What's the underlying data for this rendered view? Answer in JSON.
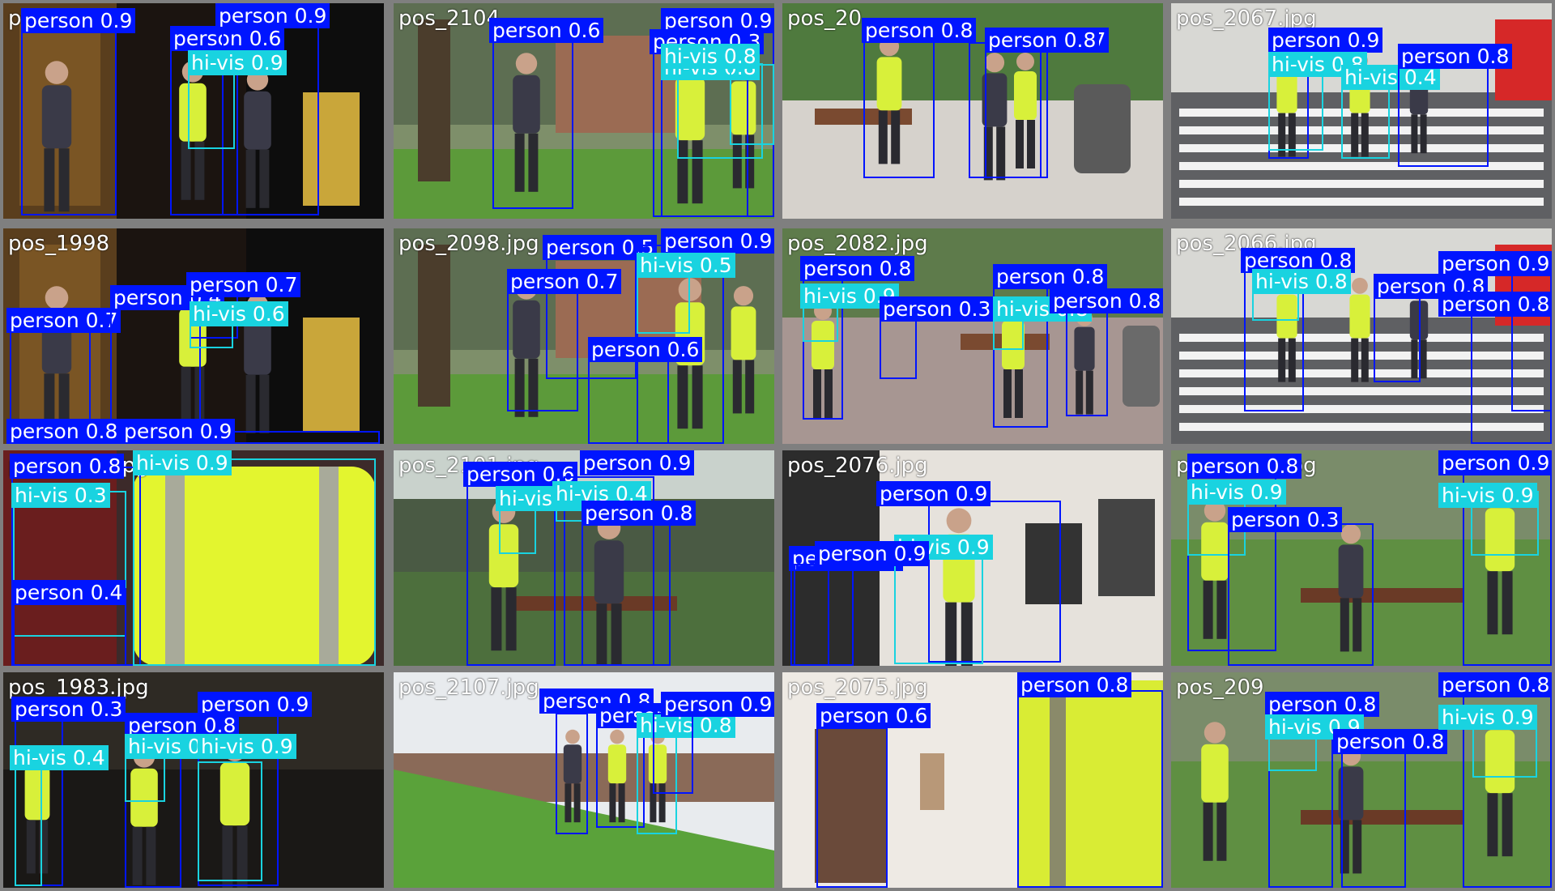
{
  "tiles": [
    {
      "name": "po",
      "scene": "doorway",
      "boxes": [
        {
          "cls": "person",
          "conf": "0.9"
        },
        {
          "cls": "person",
          "conf": "0.6"
        },
        {
          "cls": "person",
          "conf": "0.9"
        },
        {
          "cls": "hi-vis",
          "conf": "0.9"
        }
      ]
    },
    {
      "name": "pos_2104",
      "scene": "park",
      "boxes": [
        {
          "cls": "person",
          "conf": "0.6"
        },
        {
          "cls": "person",
          "conf": "0.9"
        },
        {
          "cls": "person",
          "conf": "0.3"
        },
        {
          "cls": "hi-vis",
          "conf": "0.8"
        },
        {
          "cls": "hi-vis",
          "conf": "0.8"
        }
      ]
    },
    {
      "name": "pos_20",
      "scene": "park-bench",
      "boxes": [
        {
          "cls": "person",
          "conf": "0.8"
        },
        {
          "cls": "person",
          "conf": "0.7"
        },
        {
          "cls": "person",
          "conf": "0.8"
        }
      ]
    },
    {
      "name": "pos_2067.jpg",
      "scene": "crosswalk",
      "boxes": [
        {
          "cls": "person",
          "conf": "0.9"
        },
        {
          "cls": "hi-vis",
          "conf": "0.8"
        },
        {
          "cls": "hi-vis",
          "conf": "0.4"
        },
        {
          "cls": "person",
          "conf": "0.8"
        }
      ]
    },
    {
      "name": "pos_1998",
      "scene": "doorway",
      "boxes": [
        {
          "cls": "person",
          "conf": "0.7"
        },
        {
          "cls": "person",
          "conf": "0.4"
        },
        {
          "cls": "person",
          "conf": "0.7"
        },
        {
          "cls": "hi-vis",
          "conf": "0.6"
        },
        {
          "cls": "person",
          "conf": "0.8"
        },
        {
          "cls": "person",
          "conf": "0.9"
        }
      ]
    },
    {
      "name": "pos_2098.jpg",
      "scene": "park",
      "boxes": [
        {
          "cls": "person",
          "conf": "0.5"
        },
        {
          "cls": "person",
          "conf": "0.9"
        },
        {
          "cls": "person",
          "conf": "0.7"
        },
        {
          "cls": "hi-vis",
          "conf": "0.5"
        },
        {
          "cls": "person",
          "conf": "0.6"
        }
      ]
    },
    {
      "name": "pos_2082.jpg",
      "scene": "plaza",
      "boxes": [
        {
          "cls": "person",
          "conf": "0.8"
        },
        {
          "cls": "hi-vis",
          "conf": "0.9"
        },
        {
          "cls": "person",
          "conf": "0.8"
        },
        {
          "cls": "person",
          "conf": "0.3"
        },
        {
          "cls": "hi-vis",
          "conf": "0.8"
        },
        {
          "cls": "person",
          "conf": "0.8"
        }
      ]
    },
    {
      "name": "pos_2066.jpg",
      "scene": "crosswalk",
      "boxes": [
        {
          "cls": "person",
          "conf": "0.8"
        },
        {
          "cls": "hi-vis",
          "conf": "0.8"
        },
        {
          "cls": "person",
          "conf": "0.9"
        },
        {
          "cls": "person",
          "conf": "0.8"
        },
        {
          "cls": "person",
          "conf": "0.8"
        }
      ]
    },
    {
      "name": "pos_1994.jpg",
      "scene": "closeup-yellow",
      "boxes": [
        {
          "cls": "person",
          "conf": "0.8"
        },
        {
          "cls": "hi-vis",
          "conf": "0.3"
        },
        {
          "cls": "person",
          "conf": "0.4"
        },
        {
          "cls": "hi-vis",
          "conf": "0.9"
        }
      ]
    },
    {
      "name": "pos_2101.jpg",
      "scene": "park-fence",
      "boxes": [
        {
          "cls": "person",
          "conf": "0.6"
        },
        {
          "cls": "person",
          "conf": "0.9"
        },
        {
          "cls": "hi-vis",
          "conf": "0.9"
        },
        {
          "cls": "hi-vis",
          "conf": "0.4"
        },
        {
          "cls": "person",
          "conf": "0.8"
        }
      ]
    },
    {
      "name": "pos_2076.jpg",
      "scene": "gallery",
      "boxes": [
        {
          "cls": "person",
          "conf": "0.9"
        },
        {
          "cls": "person",
          "conf": "0.3"
        },
        {
          "cls": "hi-vis",
          "conf": "0.9"
        },
        {
          "cls": "person",
          "conf": "0.9"
        }
      ]
    },
    {
      "name": "pos_2095.jpg",
      "scene": "park-grass",
      "boxes": [
        {
          "cls": "person",
          "conf": "0.8"
        },
        {
          "cls": "hi-vis",
          "conf": "0.9"
        },
        {
          "cls": "person",
          "conf": "0.3"
        },
        {
          "cls": "person",
          "conf": "0.9"
        },
        {
          "cls": "hi-vis",
          "conf": "0.9"
        }
      ]
    },
    {
      "name": "pos_1983.jpg",
      "scene": "dark-indoor",
      "boxes": [
        {
          "cls": "person",
          "conf": "0.3"
        },
        {
          "cls": "person",
          "conf": "0.9"
        },
        {
          "cls": "person",
          "conf": "0.8"
        },
        {
          "cls": "hi-vis",
          "conf": "0.4"
        },
        {
          "cls": "hi-vis",
          "conf": "0.9"
        },
        {
          "cls": "hi-vis",
          "conf": "0.9"
        }
      ]
    },
    {
      "name": "pos_2107.jpg",
      "scene": "hill",
      "boxes": [
        {
          "cls": "person",
          "conf": "0.8"
        },
        {
          "cls": "person",
          "conf": "0.8"
        },
        {
          "cls": "hi-vis",
          "conf": "0.8"
        },
        {
          "cls": "person",
          "conf": "0.9"
        }
      ]
    },
    {
      "name": "pos_2075.jpg",
      "scene": "gallery-light",
      "boxes": [
        {
          "cls": "person",
          "conf": "0.6"
        },
        {
          "cls": "person",
          "conf": "0.8"
        }
      ]
    },
    {
      "name": "pos_209",
      "scene": "park-grass",
      "boxes": [
        {
          "cls": "person",
          "conf": "0.8"
        },
        {
          "cls": "hi-vis",
          "conf": "0.9"
        },
        {
          "cls": "person",
          "conf": "0.8"
        },
        {
          "cls": "person",
          "conf": "0.8"
        },
        {
          "cls": "hi-vis",
          "conf": "0.9"
        }
      ]
    }
  ]
}
